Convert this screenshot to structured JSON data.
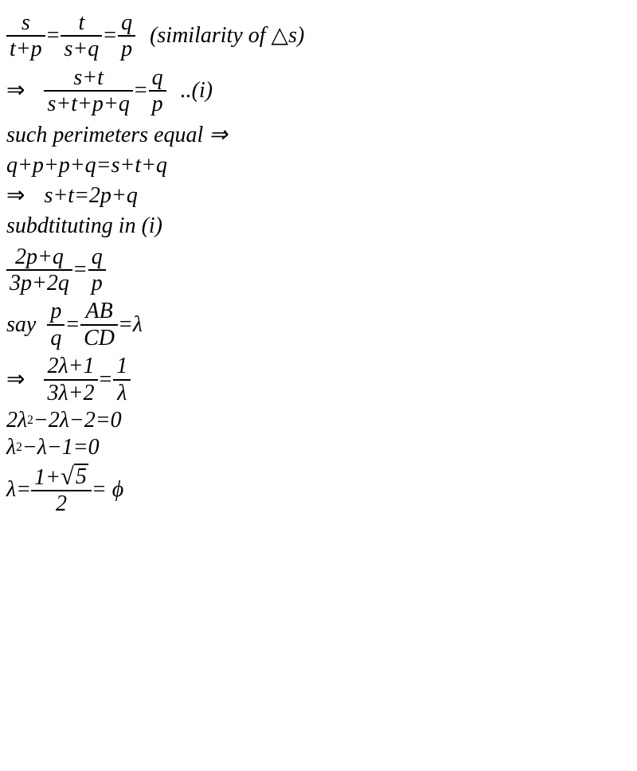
{
  "l1": {
    "f1n": "s",
    "f1d": "t+p",
    "f2n": "t",
    "f2d": "s+q",
    "f3n": "q",
    "f3d": "p",
    "note": "(similarity of ",
    "tri": "△",
    "note2": "s)"
  },
  "l2": {
    "arr": "⇒",
    "f1n": "s+t",
    "f1d": "s+t+p+q",
    "f2n": "q",
    "f2d": "p",
    "note": "..(i)"
  },
  "l3": "such perimeters equal ⇒",
  "l4": "q+p+p+q=s+t+q",
  "l5": {
    "arr": "⇒",
    "body": "s+t=2p+q"
  },
  "l6": "subdtituting in (i)",
  "l7": {
    "f1n": "2p+q",
    "f1d": "3p+2q",
    "f2n": "q",
    "f2d": "p"
  },
  "l8": {
    "pre": "say",
    "f1n": "p",
    "f1d": "q",
    "mid": "AB",
    "mid2": "CD",
    "post": "=λ"
  },
  "l9": {
    "arr": "⇒",
    "f1n": "2λ+1",
    "f1d": "3λ+2",
    "f2n": "1",
    "f2d": "λ"
  },
  "l10": {
    "a": "2λ",
    "b": "−2λ−2=0"
  },
  "l11": {
    "a": "λ",
    "b": "−λ−1=0"
  },
  "l12": {
    "pre": "λ=",
    "num1": "1+",
    "sqrt": "5",
    "den": "2",
    "post": " = ϕ"
  }
}
